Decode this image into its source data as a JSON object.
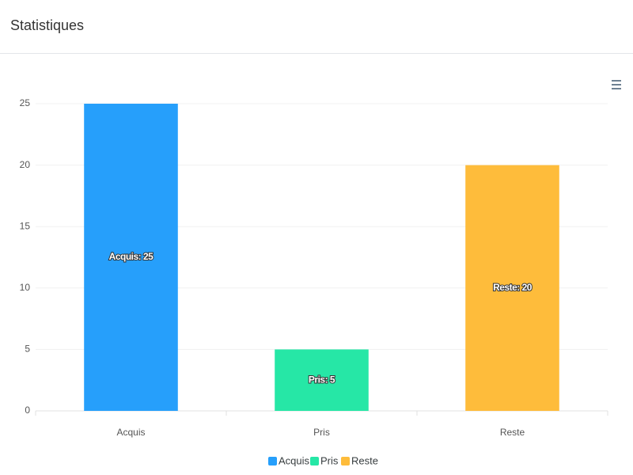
{
  "header": {
    "title": "Statistiques"
  },
  "chart_data": {
    "type": "bar",
    "categories": [
      "Acquis",
      "Pris",
      "Reste"
    ],
    "values": [
      25,
      5,
      20
    ],
    "value_labels": [
      "Acquis: 25",
      "Pris: 5",
      "Reste: 20"
    ],
    "colors": [
      "#269ffb",
      "#26e7a6",
      "#febc3b"
    ],
    "ylim": [
      0,
      25
    ],
    "yticks": [
      0,
      5,
      10,
      15,
      20,
      25
    ],
    "grid": true,
    "legend": "bottom"
  }
}
